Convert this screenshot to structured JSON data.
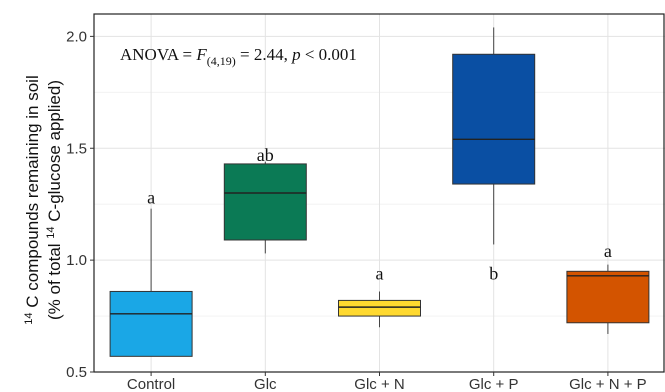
{
  "chart_data": {
    "type": "box",
    "categories": [
      "Control",
      "Glc",
      "Glc + N",
      "Glc + P",
      "Glc + N + P"
    ],
    "boxes": [
      {
        "category": "Control",
        "min": 0.57,
        "q1": 0.57,
        "median": 0.76,
        "q3": 0.86,
        "max": 1.23,
        "color": "#1aa7e6",
        "letter": "a"
      },
      {
        "category": "Glc",
        "min": 1.03,
        "q1": 1.09,
        "median": 1.3,
        "q3": 1.43,
        "max": 1.44,
        "color": "#0b7a55",
        "letter": "ab"
      },
      {
        "category": "Glc + N",
        "min": 0.7,
        "q1": 0.75,
        "median": 0.79,
        "q3": 0.82,
        "max": 0.86,
        "color": "#ffd92f",
        "letter": "a"
      },
      {
        "category": "Glc + P",
        "min": 1.07,
        "q1": 1.34,
        "median": 1.54,
        "q3": 1.92,
        "max": 2.04,
        "color": "#0a4fa3",
        "letter": "b"
      },
      {
        "category": "Glc + N + P",
        "min": 0.67,
        "q1": 0.72,
        "median": 0.93,
        "q3": 0.95,
        "max": 0.98,
        "color": "#d35400",
        "letter": "a"
      }
    ],
    "letter_y": [
      1.28,
      1.47,
      0.94,
      0.94,
      1.04
    ],
    "ylim": [
      0.5,
      2.1
    ],
    "yticks": [
      "0.5",
      "1.0",
      "1.5",
      "2.0"
    ],
    "ylabel_line1_pre": "14",
    "ylabel_line1_post": " C compounds remaining in soil",
    "ylabel_line2_pre": "(% of total ",
    "ylabel_line2_sup": "14",
    "ylabel_line2_post": " C-glucose applied)",
    "annotation": {
      "prefix": "ANOVA = ",
      "stat": "F",
      "df": "(4,19)",
      "value": " = 2.44, ",
      "p": "p",
      "p_value": " < 0.001"
    },
    "grid": true
  }
}
